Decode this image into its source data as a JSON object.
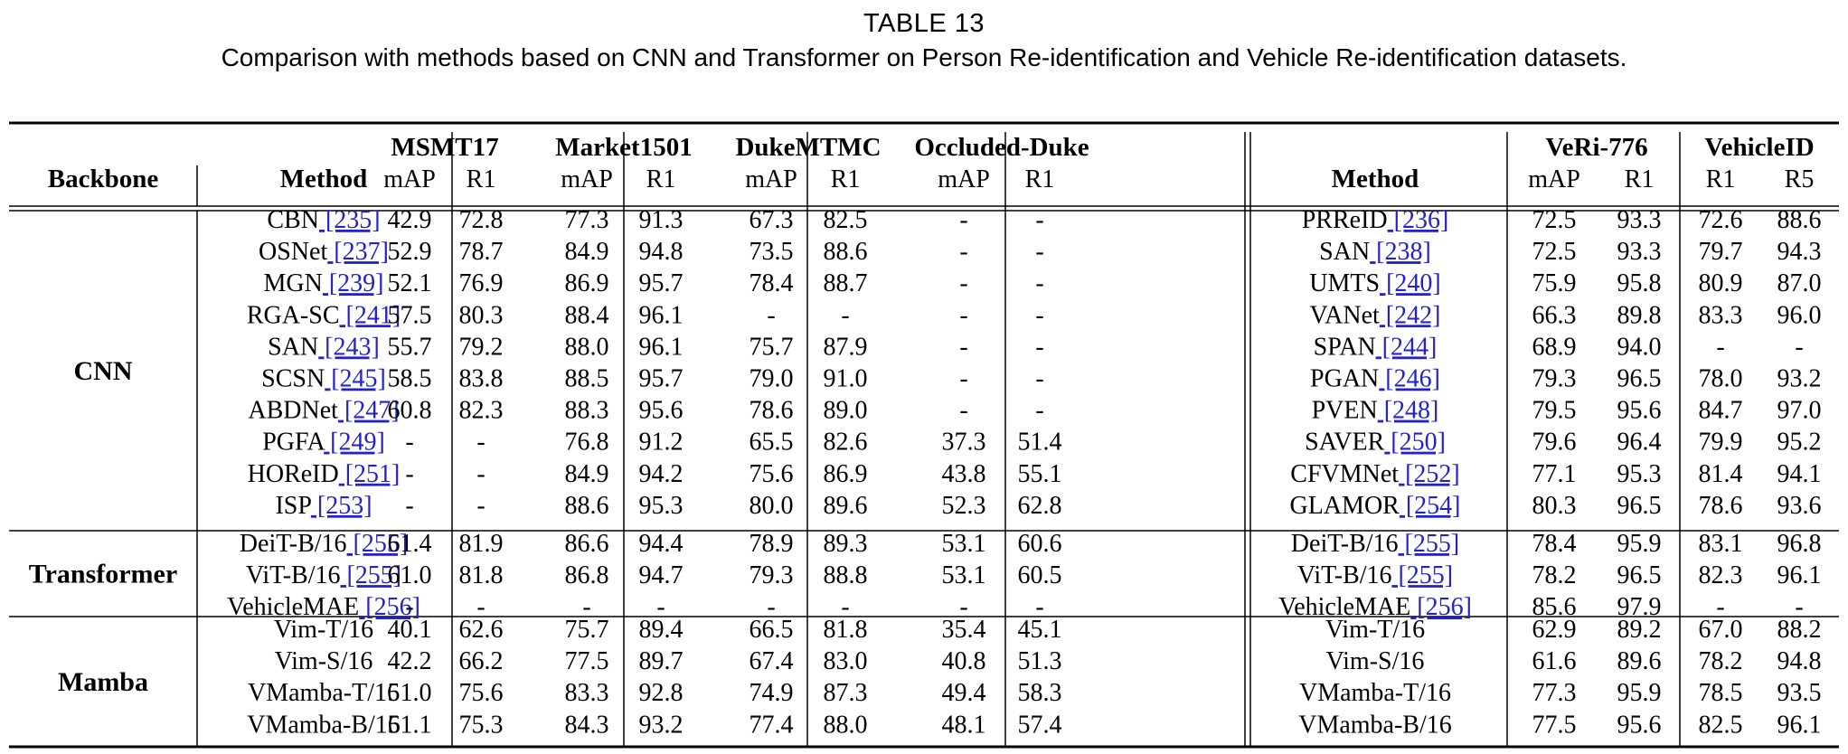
{
  "caption": {
    "number": "TABLE 13",
    "text": "Comparison with methods based on CNN and Transformer on Person Re-identification and Vehicle Re-identification datasets."
  },
  "header": {
    "backbone": "Backbone",
    "method": "Method",
    "person_datasets": [
      "MSMT17",
      "Market1501",
      "DukeMTMC",
      "Occluded-Duke"
    ],
    "person_metrics": [
      "mAP",
      "R1"
    ],
    "vehicle_datasets": [
      {
        "name": "VeRi-776",
        "metrics": [
          "mAP",
          "R1"
        ]
      },
      {
        "name": "VehicleID",
        "metrics": [
          "R1",
          "R5"
        ]
      }
    ]
  },
  "groups": [
    {
      "name": "CNN",
      "rows": 10
    },
    {
      "name": "Transformer",
      "rows": 3
    },
    {
      "name": "Mamba",
      "rows": 4
    }
  ],
  "rows": [
    {
      "group": "CNN",
      "person_method": "CBN",
      "person_ref": "[235]",
      "person": [
        "42.9",
        "72.8",
        "77.3",
        "91.3",
        "67.3",
        "82.5",
        "-",
        "-"
      ],
      "vehicle_method": "PRReID",
      "vehicle_ref": "[236]",
      "vehicle": [
        "72.5",
        "93.3",
        "72.6",
        "88.6"
      ]
    },
    {
      "group": "CNN",
      "person_method": "OSNet",
      "person_ref": "[237]",
      "person": [
        "52.9",
        "78.7",
        "84.9",
        "94.8",
        "73.5",
        "88.6",
        "-",
        "-"
      ],
      "vehicle_method": "SAN",
      "vehicle_ref": "[238]",
      "vehicle": [
        "72.5",
        "93.3",
        "79.7",
        "94.3"
      ]
    },
    {
      "group": "CNN",
      "person_method": "MGN",
      "person_ref": "[239]",
      "person": [
        "52.1",
        "76.9",
        "86.9",
        "95.7",
        "78.4",
        "88.7",
        "-",
        "-"
      ],
      "vehicle_method": "UMTS",
      "vehicle_ref": "[240]",
      "vehicle": [
        "75.9",
        "95.8",
        "80.9",
        "87.0"
      ]
    },
    {
      "group": "CNN",
      "person_method": "RGA-SC",
      "person_ref": "[241]",
      "person": [
        "57.5",
        "80.3",
        "88.4",
        "96.1",
        "-",
        "-",
        "-",
        "-"
      ],
      "vehicle_method": "VANet",
      "vehicle_ref": "[242]",
      "vehicle": [
        "66.3",
        "89.8",
        "83.3",
        "96.0"
      ]
    },
    {
      "group": "CNN",
      "person_method": "SAN",
      "person_ref": "[243]",
      "person": [
        "55.7",
        "79.2",
        "88.0",
        "96.1",
        "75.7",
        "87.9",
        "-",
        "-"
      ],
      "vehicle_method": "SPAN",
      "vehicle_ref": "[244]",
      "vehicle": [
        "68.9",
        "94.0",
        "-",
        "-"
      ]
    },
    {
      "group": "CNN",
      "person_method": "SCSN",
      "person_ref": "[245]",
      "person": [
        "58.5",
        "83.8",
        "88.5",
        "95.7",
        "79.0",
        "91.0",
        "-",
        "-"
      ],
      "vehicle_method": "PGAN",
      "vehicle_ref": "[246]",
      "vehicle": [
        "79.3",
        "96.5",
        "78.0",
        "93.2"
      ]
    },
    {
      "group": "CNN",
      "person_method": "ABDNet",
      "person_ref": "[247]",
      "person": [
        "60.8",
        "82.3",
        "88.3",
        "95.6",
        "78.6",
        "89.0",
        "-",
        "-"
      ],
      "vehicle_method": "PVEN",
      "vehicle_ref": "[248]",
      "vehicle": [
        "79.5",
        "95.6",
        "84.7",
        "97.0"
      ]
    },
    {
      "group": "CNN",
      "person_method": "PGFA",
      "person_ref": "[249]",
      "person": [
        "-",
        "-",
        "76.8",
        "91.2",
        "65.5",
        "82.6",
        "37.3",
        "51.4"
      ],
      "vehicle_method": "SAVER",
      "vehicle_ref": "[250]",
      "vehicle": [
        "79.6",
        "96.4",
        "79.9",
        "95.2"
      ]
    },
    {
      "group": "CNN",
      "person_method": "HOReID",
      "person_ref": "[251]",
      "person": [
        "-",
        "-",
        "84.9",
        "94.2",
        "75.6",
        "86.9",
        "43.8",
        "55.1"
      ],
      "vehicle_method": "CFVMNet",
      "vehicle_ref": "[252]",
      "vehicle": [
        "77.1",
        "95.3",
        "81.4",
        "94.1"
      ]
    },
    {
      "group": "CNN",
      "person_method": "ISP",
      "person_ref": "[253]",
      "person": [
        "-",
        "-",
        "88.6",
        "95.3",
        "80.0",
        "89.6",
        "52.3",
        "62.8"
      ],
      "vehicle_method": "GLAMOR",
      "vehicle_ref": "[254]",
      "vehicle": [
        "80.3",
        "96.5",
        "78.6",
        "93.6"
      ]
    },
    {
      "group": "Transformer",
      "person_method": "DeiT-B/16",
      "person_ref": "[255]",
      "person": [
        "61.4",
        "81.9",
        "86.6",
        "94.4",
        "78.9",
        "89.3",
        "53.1",
        "60.6"
      ],
      "vehicle_method": "DeiT-B/16",
      "vehicle_ref": "[255]",
      "vehicle": [
        "78.4",
        "95.9",
        "83.1",
        "96.8"
      ]
    },
    {
      "group": "Transformer",
      "person_method": "ViT-B/16",
      "person_ref": "[255]",
      "person": [
        "61.0",
        "81.8",
        "86.8",
        "94.7",
        "79.3",
        "88.8",
        "53.1",
        "60.5"
      ],
      "vehicle_method": "ViT-B/16",
      "vehicle_ref": "[255]",
      "vehicle": [
        "78.2",
        "96.5",
        "82.3",
        "96.1"
      ]
    },
    {
      "group": "Transformer",
      "person_method": "VehicleMAE",
      "person_ref": "[256]",
      "person": [
        "-",
        "-",
        "-",
        "-",
        "-",
        "-",
        "-",
        "-"
      ],
      "vehicle_method": "VehicleMAE",
      "vehicle_ref": "[256]",
      "vehicle": [
        "85.6",
        "97.9",
        "-",
        "-"
      ]
    },
    {
      "group": "Mamba",
      "person_method": "Vim-T/16",
      "person_ref": "",
      "person": [
        "40.1",
        "62.6",
        "75.7",
        "89.4",
        "66.5",
        "81.8",
        "35.4",
        "45.1"
      ],
      "vehicle_method": "Vim-T/16",
      "vehicle_ref": "",
      "vehicle": [
        "62.9",
        "89.2",
        "67.0",
        "88.2"
      ]
    },
    {
      "group": "Mamba",
      "person_method": "Vim-S/16",
      "person_ref": "",
      "person": [
        "42.2",
        "66.2",
        "77.5",
        "89.7",
        "67.4",
        "83.0",
        "40.8",
        "51.3"
      ],
      "vehicle_method": "Vim-S/16",
      "vehicle_ref": "",
      "vehicle": [
        "61.6",
        "89.6",
        "78.2",
        "94.8"
      ]
    },
    {
      "group": "Mamba",
      "person_method": "VMamba-T/16",
      "person_ref": "",
      "person": [
        "51.0",
        "75.6",
        "83.3",
        "92.8",
        "74.9",
        "87.3",
        "49.4",
        "58.3"
      ],
      "vehicle_method": "VMamba-T/16",
      "vehicle_ref": "",
      "vehicle": [
        "77.3",
        "95.9",
        "78.5",
        "93.5"
      ]
    },
    {
      "group": "Mamba",
      "person_method": "VMamba-B/16",
      "person_ref": "",
      "person": [
        "51.1",
        "75.3",
        "84.3",
        "93.2",
        "77.4",
        "88.0",
        "48.1",
        "57.4"
      ],
      "vehicle_method": "VMamba-B/16",
      "vehicle_ref": "",
      "vehicle": [
        "77.5",
        "95.6",
        "82.5",
        "96.1"
      ]
    }
  ]
}
